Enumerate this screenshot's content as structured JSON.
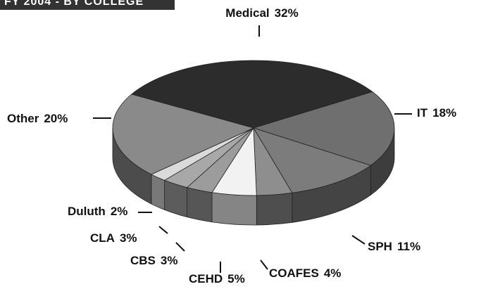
{
  "chart_data": {
    "type": "pie3d",
    "title": "FY 2004 - BY COLLEGE",
    "categories": [
      "Medical",
      "IT",
      "SPH",
      "COAFES",
      "CEHD",
      "CBS",
      "CLA",
      "Duluth",
      "Other"
    ],
    "values": [
      32,
      18,
      11,
      4,
      5,
      3,
      3,
      2,
      20
    ],
    "value_labels": [
      "32%",
      "18%",
      "11%",
      "4%",
      "5%",
      "3%",
      "3%",
      "2%",
      "20%"
    ],
    "colors": [
      "#2c2c2c",
      "#6f6f6f",
      "#7c7c7c",
      "#8e8e8e",
      "#f2f2f2",
      "#9c9c9c",
      "#a8a8a8",
      "#dadada",
      "#8a8a8a"
    ]
  }
}
